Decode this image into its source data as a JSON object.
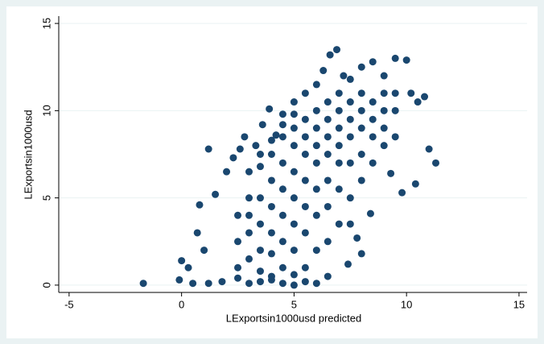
{
  "chart_data": {
    "type": "scatter",
    "xlabel": "LExportsin1000usd predicted",
    "ylabel": "LExportsin1000usd",
    "color": "#1a476f",
    "grid": true,
    "xlim": [
      -5.46,
      15.36
    ],
    "ylim": [
      -0.42,
      15.42
    ],
    "xticks": [
      -5,
      0,
      5,
      10,
      15
    ],
    "yticks": [
      0,
      5,
      10,
      15
    ],
    "x": [
      -1.7,
      -0.1,
      0,
      0.3,
      0.5,
      0.8,
      1.2,
      1.5,
      0.7,
      1.0,
      1.8,
      2.0,
      2.3,
      2.6,
      2.8,
      3.0,
      3.3,
      3.6,
      3.9,
      4.2,
      4.5,
      5.0,
      5.5,
      6.0,
      6.3,
      6.6,
      6.9,
      7.2,
      7.5,
      8.0,
      8.5,
      9.0,
      9.5,
      10.0,
      10.2,
      10.5,
      10.8,
      11.0,
      11.3,
      10.4,
      9.8,
      9.3,
      8.4,
      7.5,
      7.8,
      8.0,
      7.4,
      6.5,
      6.0,
      5.5,
      5.0,
      4.5,
      4.0,
      3.5,
      3.0,
      2.5,
      1.2,
      2.5,
      2.5,
      2.5,
      3,
      3,
      3,
      3,
      3.5,
      3.5,
      3.5,
      3.5,
      3.5,
      3.5,
      4,
      4,
      4,
      4,
      4,
      4,
      4,
      4.5,
      4.5,
      4.5,
      4.5,
      4.5,
      4.5,
      4.5,
      5,
      5,
      5,
      5,
      5,
      5,
      5,
      5,
      5.5,
      5.5,
      5.5,
      5.5,
      5.5,
      5.5,
      5.5,
      6,
      6,
      6,
      6,
      6,
      6,
      6,
      6.5,
      6.5,
      6.5,
      6.5,
      6.5,
      6.5,
      6.5,
      7,
      7,
      7,
      7,
      7,
      7,
      7,
      7.5,
      7.5,
      7.5,
      7.5,
      7.5,
      8,
      8,
      8,
      8,
      8,
      8.5,
      8.5,
      8.5,
      8.5,
      9,
      9,
      9,
      9,
      9.5,
      9.5,
      9.5
    ],
    "values": [
      0.1,
      0.3,
      1.4,
      1.0,
      0.1,
      4.6,
      7.8,
      5.2,
      3.0,
      2.0,
      0.2,
      6.5,
      7.3,
      7.8,
      8.5,
      4.0,
      8.0,
      9.2,
      10.1,
      8.6,
      9.8,
      10.5,
      11.0,
      11.5,
      12.3,
      13.2,
      13.5,
      12.0,
      11.8,
      12.5,
      12.8,
      12.0,
      13.0,
      12.9,
      11.0,
      10.5,
      10.8,
      7.8,
      7.0,
      5.8,
      5.3,
      6.4,
      4.1,
      3.5,
      2.7,
      1.8,
      1.2,
      0.5,
      0.1,
      0.2,
      0.0,
      0.1,
      0.3,
      0.2,
      0.1,
      0.4,
      0.1,
      1,
      2.5,
      4,
      1.5,
      3,
      5,
      6.5,
      0.8,
      2,
      3.5,
      5,
      6.8,
      7.5,
      0.5,
      1.8,
      3,
      4.5,
      6,
      7.5,
      8.3,
      1,
      2.5,
      4,
      5.5,
      7,
      8.5,
      9.2,
      0.6,
      2,
      3.5,
      5,
      6.5,
      8,
      9,
      9.8,
      1,
      3,
      4.5,
      6,
      7.5,
      8.5,
      9.5,
      2,
      4,
      5.5,
      7,
      8,
      9,
      10,
      2.5,
      4.5,
      6,
      7.5,
      8.5,
      9.5,
      10.5,
      3.5,
      5.5,
      7,
      8,
      9,
      10,
      11,
      5,
      7,
      8.5,
      9.5,
      10.5,
      6,
      7.5,
      9,
      10,
      11,
      7,
      8.5,
      9.5,
      10.5,
      8,
      9,
      10,
      11,
      8.5,
      10,
      11
    ]
  }
}
